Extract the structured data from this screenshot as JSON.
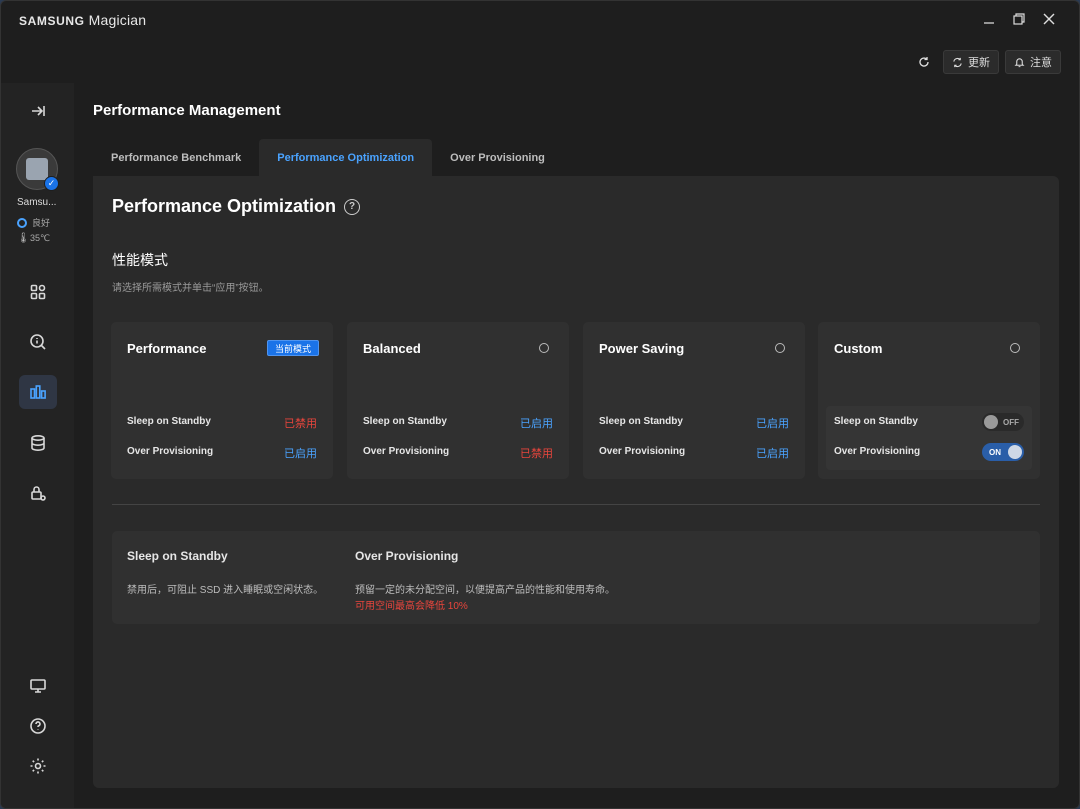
{
  "app": {
    "brand_bold": "SAMSUNG",
    "brand_rest": " Magician"
  },
  "window_controls": {
    "minimize": "minimize-icon",
    "restore": "restore-icon",
    "close": "close-icon"
  },
  "toolbar": {
    "update_label": "更新",
    "notice_label": "注意"
  },
  "sidebar": {
    "device_name": "Samsu...",
    "status_label": "良好",
    "temperature": "35℃",
    "items": [
      {
        "name": "collapse",
        "icon": "collapse-arrow-icon"
      },
      {
        "name": "dashboard",
        "icon": "grid-icon"
      },
      {
        "name": "diagnostics",
        "icon": "search-info-icon"
      },
      {
        "name": "performance",
        "icon": "bar-chart-icon",
        "active": true
      },
      {
        "name": "data-management",
        "icon": "database-icon"
      },
      {
        "name": "security",
        "icon": "lock-gear-icon"
      },
      {
        "name": "display",
        "icon": "monitor-icon"
      },
      {
        "name": "help",
        "icon": "help-icon"
      },
      {
        "name": "settings",
        "icon": "gear-icon"
      }
    ]
  },
  "page": {
    "title": "Performance Management",
    "tabs": [
      {
        "label": "Performance Benchmark",
        "active": false
      },
      {
        "label": "Performance Optimization",
        "active": true
      },
      {
        "label": "Over Provisioning",
        "active": false
      }
    ]
  },
  "section": {
    "title": "Performance Optimization",
    "mode_heading": "性能模式",
    "mode_desc": "请选择所需模式并单击“应用”按钮。"
  },
  "modes": [
    {
      "title": "Performance",
      "current_badge": "当前模式",
      "sleep_label": "Sleep on Standby",
      "sleep_value": "已禁用",
      "op_label": "Over Provisioning",
      "op_value": "已启用"
    },
    {
      "title": "Balanced",
      "sleep_label": "Sleep on Standby",
      "sleep_value": "已启用",
      "op_label": "Over Provisioning",
      "op_value": "已禁用"
    },
    {
      "title": "Power Saving",
      "sleep_label": "Sleep on Standby",
      "sleep_value": "已启用",
      "op_label": "Over Provisioning",
      "op_value": "已启用"
    },
    {
      "title": "Custom",
      "sleep_label": "Sleep on Standby",
      "sleep_toggle": "OFF",
      "op_label": "Over Provisioning",
      "op_toggle": "ON"
    }
  ],
  "info": {
    "sleep_title": "Sleep on Standby",
    "sleep_text": "禁用后，可阻止 SSD 进入睡眠或空闲状态。",
    "op_title": "Over Provisioning",
    "op_text": "预留一定的未分配空间，以便提高产品的性能和使用寿命。",
    "op_warning": "可用空间最高会降低 10%"
  },
  "colors": {
    "accent": "#4aa3ff",
    "badge": "#1a73e8",
    "danger": "#e8453c",
    "bg": "#1e1e1e",
    "panel": "#2a2a2a"
  }
}
